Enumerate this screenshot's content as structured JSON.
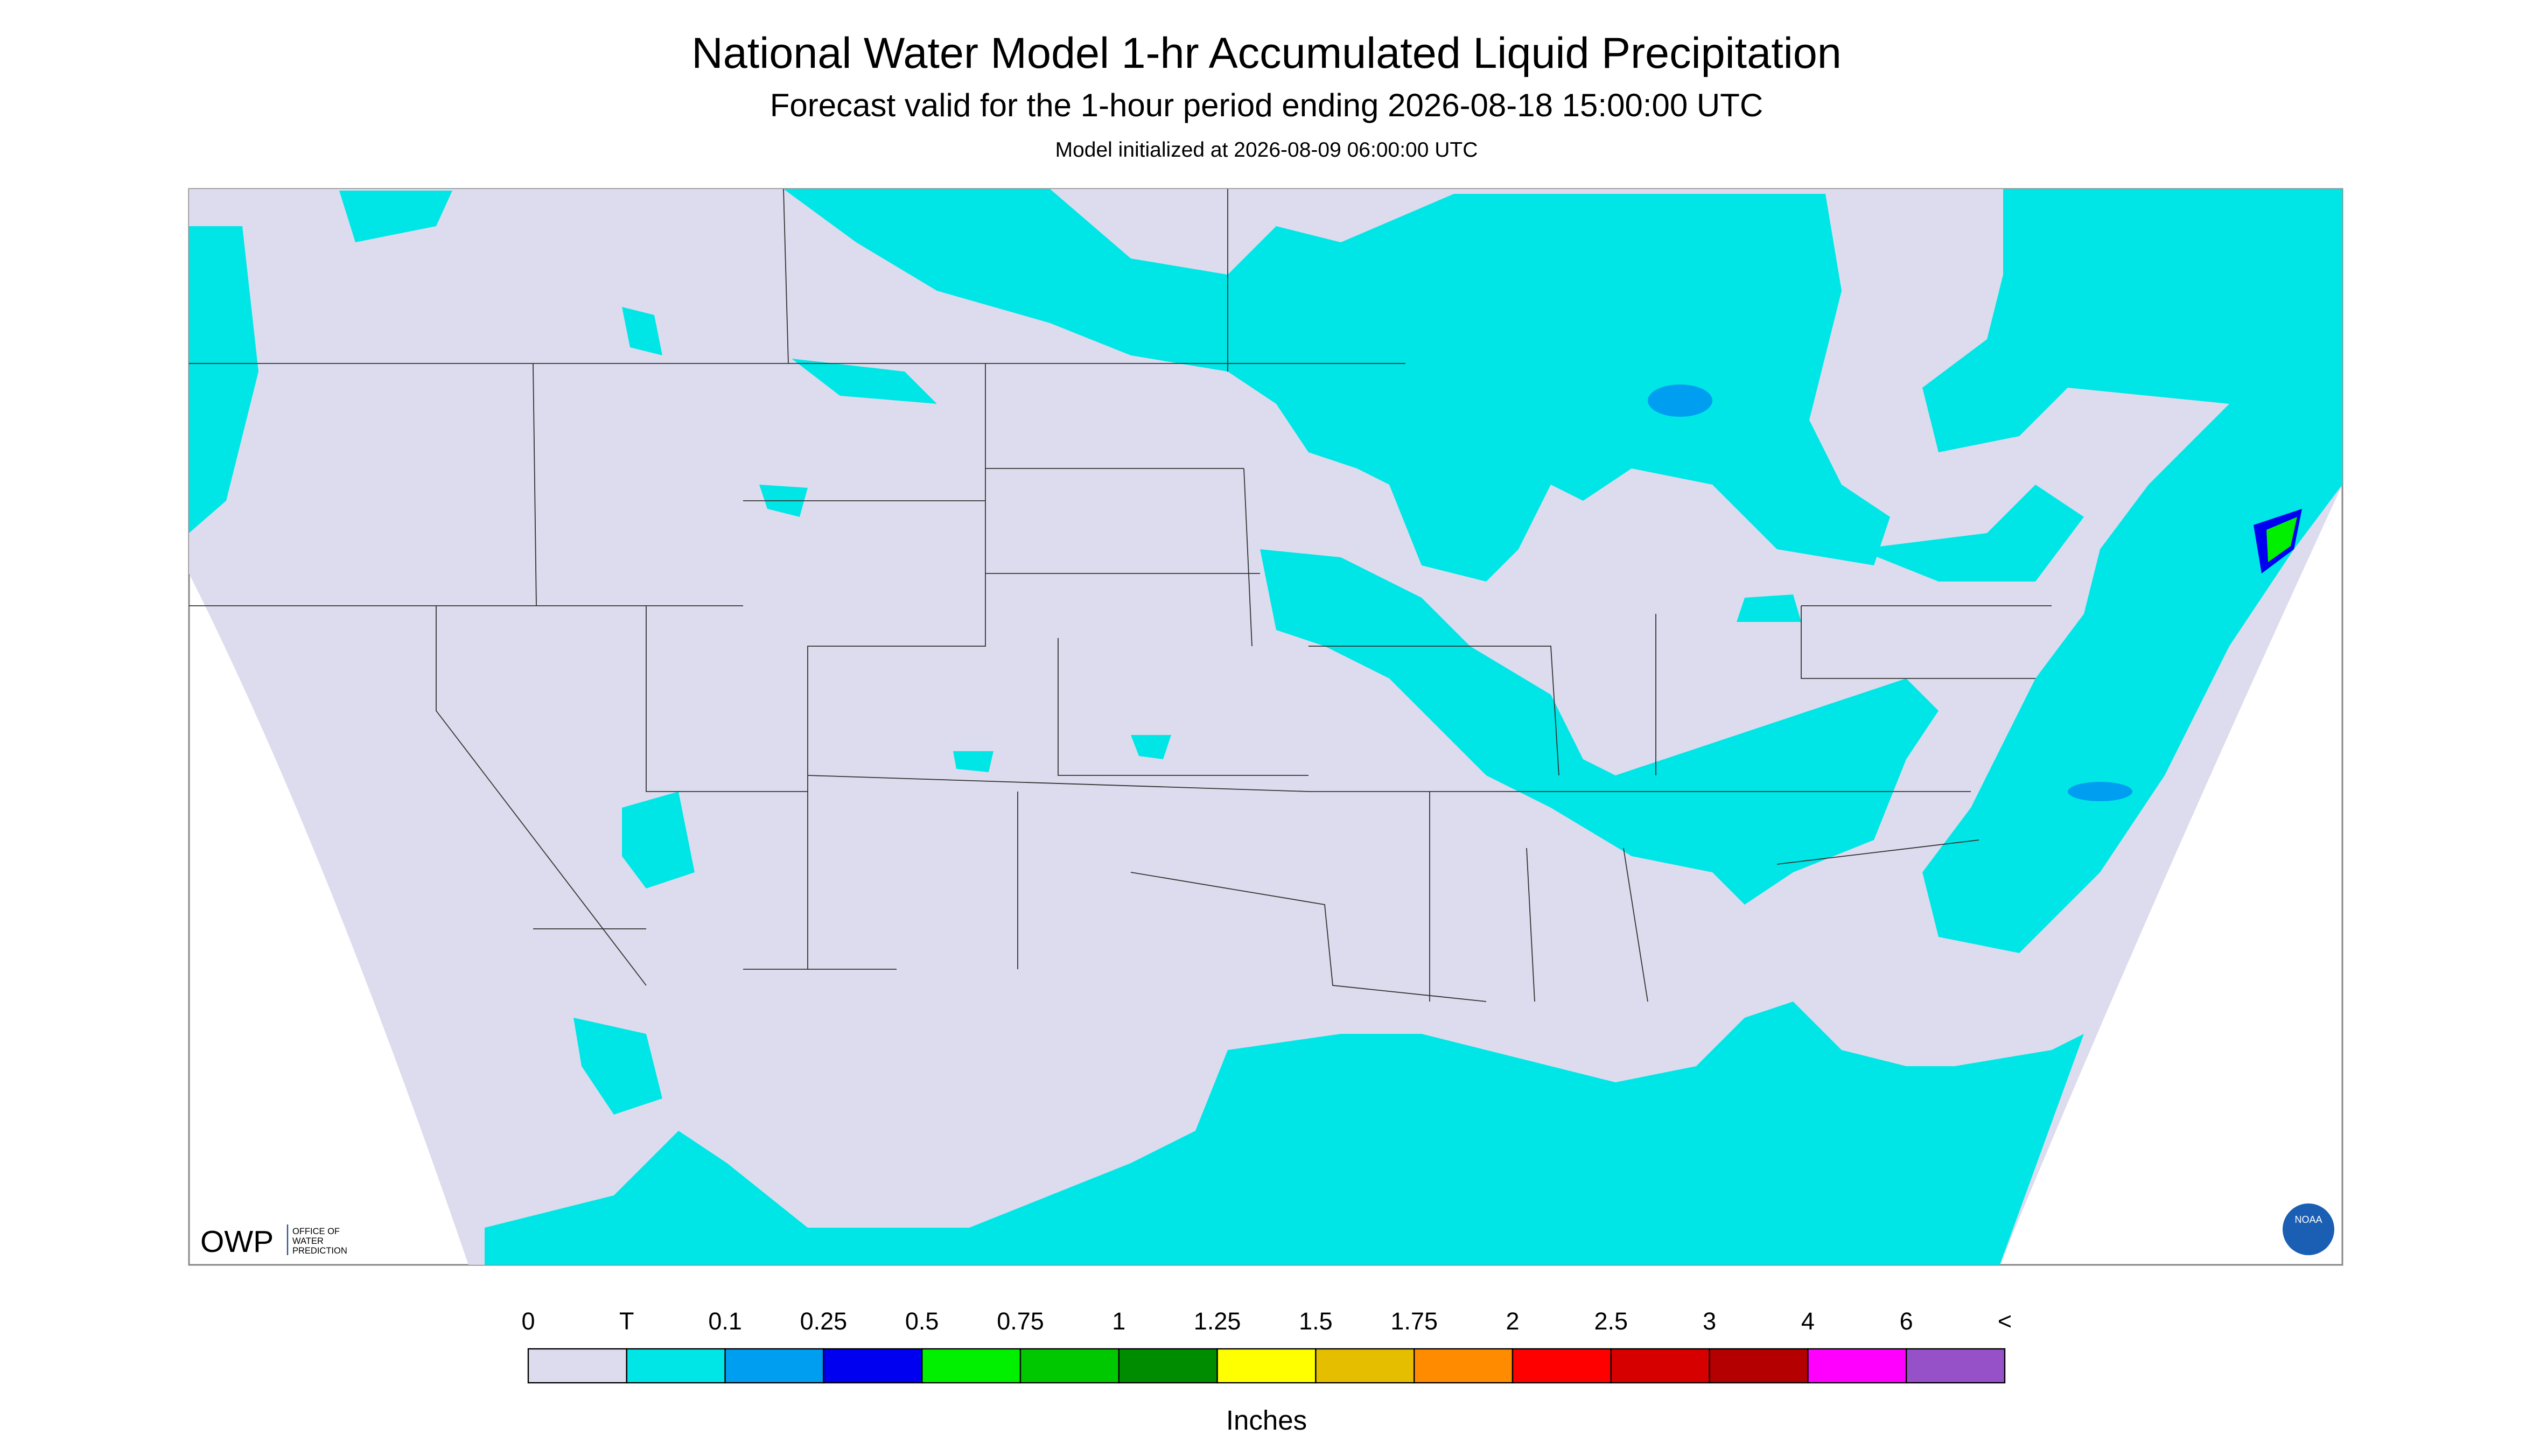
{
  "header": {
    "title": "National Water Model 1-hr Accumulated Liquid Precipitation",
    "subtitle": "Forecast valid for the 1-hour period ending 2026-08-18 15:00:00 UTC",
    "initialized": "Model initialized at 2026-08-09 06:00:00 UTC"
  },
  "logo": {
    "name": "OWP",
    "lines": [
      "OFFICE OF",
      "WATER",
      "PREDICTION"
    ],
    "badge": "NOAA"
  },
  "legend": {
    "labels": [
      "0",
      "T",
      "0.1",
      "0.25",
      "0.5",
      "0.75",
      "1",
      "1.25",
      "1.5",
      "1.75",
      "2",
      "2.5",
      "3",
      "4",
      "6",
      "<"
    ],
    "colors": [
      "#dcdcee",
      "#00e6e6",
      "#009ef0",
      "#0000f0",
      "#00f000",
      "#00c800",
      "#008c00",
      "#ffff00",
      "#e6be00",
      "#ff8c00",
      "#ff0000",
      "#d70000",
      "#b40000",
      "#ff00ff",
      "#9650c8"
    ],
    "units": "Inches"
  }
}
